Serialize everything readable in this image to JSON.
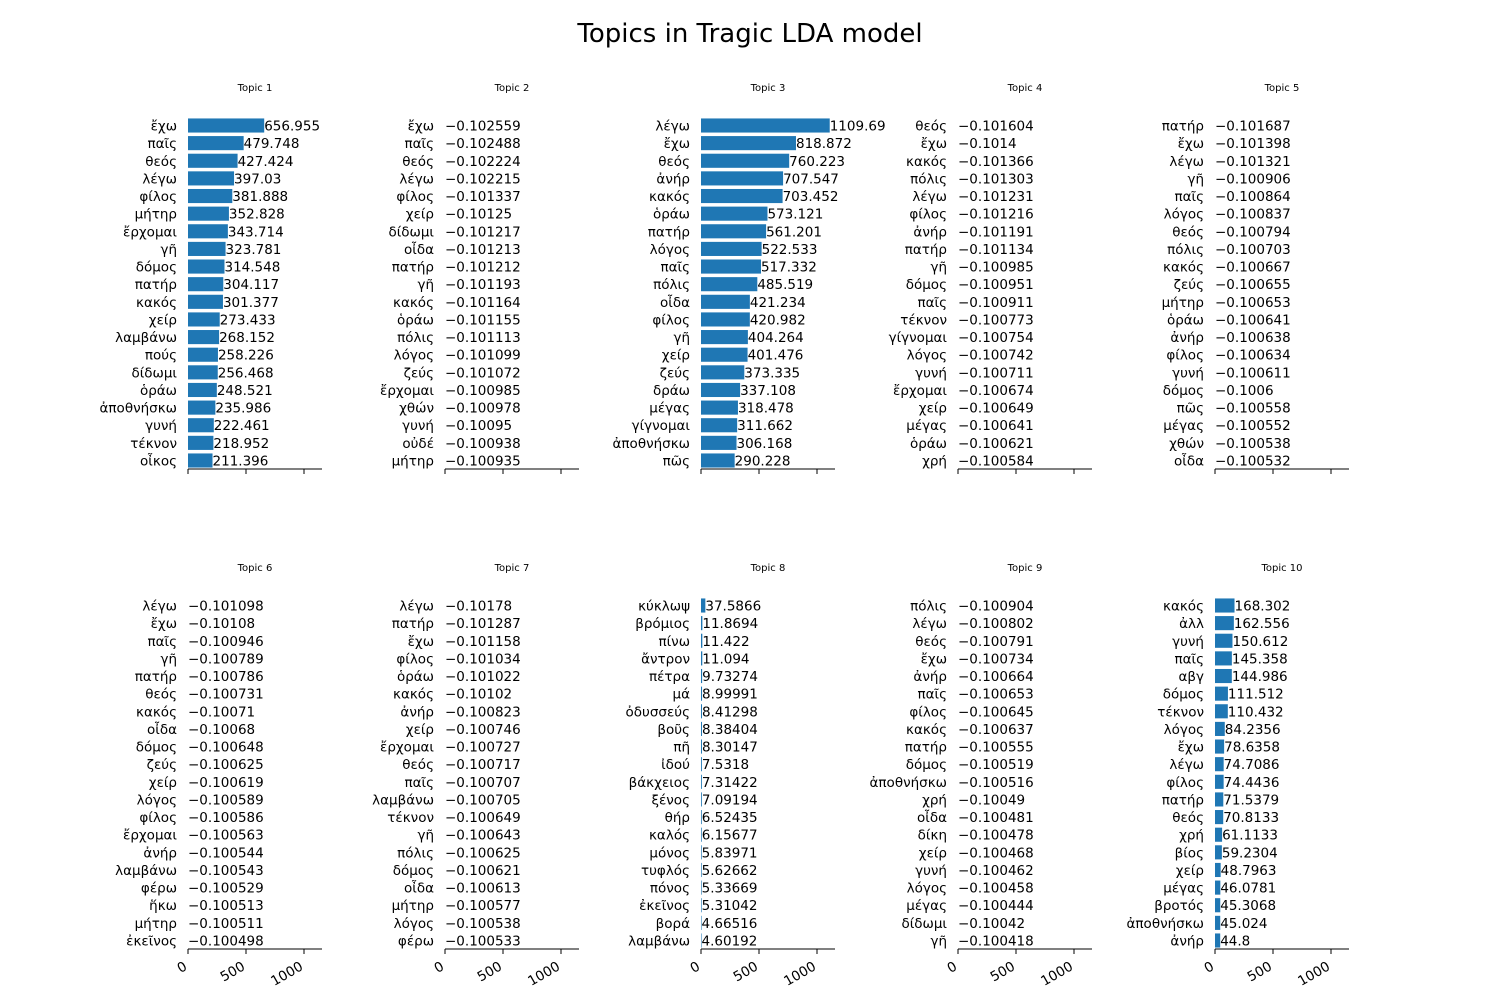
{
  "chart_data": {
    "type": "bar",
    "orientation": "horizontal",
    "title": "Topics in Tragic LDA model",
    "xlim": [
      0,
      1150
    ],
    "xticks": [
      "0",
      "500",
      "1000"
    ],
    "grid": false,
    "panels": [
      {
        "title": "Topic 1",
        "categories": [
          "ἔχω",
          "παῖς",
          "θεός",
          "λέγω",
          "φίλος",
          "μήτηρ",
          "ἔρχομαι",
          "γῆ",
          "δόμος",
          "πατήρ",
          "κακός",
          "χείρ",
          "λαμβάνω",
          "πούς",
          "δίδωμι",
          "ὁράω",
          "ἀποθνήσκω",
          "γυνή",
          "τέκνον",
          "οἶκος"
        ],
        "values": [
          656.955,
          479.748,
          427.424,
          397.03,
          381.888,
          352.828,
          343.714,
          323.781,
          314.548,
          304.117,
          301.377,
          273.433,
          268.152,
          258.226,
          256.468,
          248.521,
          235.986,
          222.461,
          218.952,
          211.396
        ],
        "labels": [
          "656.955",
          "479.748",
          "427.424",
          "397.03",
          "381.888",
          "352.828",
          "343.714",
          "323.781",
          "314.548",
          "304.117",
          "301.377",
          "273.433",
          "268.152",
          "258.226",
          "256.468",
          "248.521",
          "235.986",
          "222.461",
          "218.952",
          "211.396"
        ]
      },
      {
        "title": "Topic 2",
        "categories": [
          "ἔχω",
          "παῖς",
          "θεός",
          "λέγω",
          "φίλος",
          "χείρ",
          "δίδωμι",
          "οἶδα",
          "πατήρ",
          "γῆ",
          "κακός",
          "ὁράω",
          "πόλις",
          "λόγος",
          "ζεύς",
          "ἔρχομαι",
          "χθών",
          "γυνή",
          "οὐδέ",
          "μήτηρ"
        ],
        "values": [
          -0.102559,
          -0.102488,
          -0.102224,
          -0.102215,
          -0.101337,
          -0.10125,
          -0.101217,
          -0.101213,
          -0.101212,
          -0.101193,
          -0.101164,
          -0.101155,
          -0.101113,
          -0.101099,
          -0.101072,
          -0.100985,
          -0.100978,
          -0.10095,
          -0.100938,
          -0.100935
        ],
        "labels": [
          "−0.102559",
          "−0.102488",
          "−0.102224",
          "−0.102215",
          "−0.101337",
          "−0.10125",
          "−0.101217",
          "−0.101213",
          "−0.101212",
          "−0.101193",
          "−0.101164",
          "−0.101155",
          "−0.101113",
          "−0.101099",
          "−0.101072",
          "−0.100985",
          "−0.100978",
          "−0.10095",
          "−0.100938",
          "−0.100935"
        ]
      },
      {
        "title": "Topic 3",
        "categories": [
          "λέγω",
          "ἔχω",
          "θεός",
          "ἀνήρ",
          "κακός",
          "ὁράω",
          "πατήρ",
          "λόγος",
          "παῖς",
          "πόλις",
          "οἶδα",
          "φίλος",
          "γῆ",
          "χείρ",
          "ζεύς",
          "δράω",
          "μέγας",
          "γίγνομαι",
          "ἀποθνήσκω",
          "πῶς"
        ],
        "values": [
          1109.69,
          818.872,
          760.223,
          707.547,
          703.452,
          573.121,
          561.201,
          522.533,
          517.332,
          485.519,
          421.234,
          420.982,
          404.264,
          401.476,
          373.335,
          337.108,
          318.478,
          311.662,
          306.168,
          290.228
        ],
        "labels": [
          "1109.69",
          "818.872",
          "760.223",
          "707.547",
          "703.452",
          "573.121",
          "561.201",
          "522.533",
          "517.332",
          "485.519",
          "421.234",
          "420.982",
          "404.264",
          "401.476",
          "373.335",
          "337.108",
          "318.478",
          "311.662",
          "306.168",
          "290.228"
        ]
      },
      {
        "title": "Topic 4",
        "categories": [
          "θεός",
          "ἔχω",
          "κακός",
          "πόλις",
          "λέγω",
          "φίλος",
          "ἀνήρ",
          "πατήρ",
          "γῆ",
          "δόμος",
          "παῖς",
          "τέκνον",
          "γίγνομαι",
          "λόγος",
          "γυνή",
          "ἔρχομαι",
          "χείρ",
          "μέγας",
          "ὁράω",
          "χρή"
        ],
        "values": [
          -0.101604,
          -0.1014,
          -0.101366,
          -0.101303,
          -0.101231,
          -0.101216,
          -0.101191,
          -0.101134,
          -0.100985,
          -0.100951,
          -0.100911,
          -0.100773,
          -0.100754,
          -0.100742,
          -0.100711,
          -0.100674,
          -0.100649,
          -0.100641,
          -0.100621,
          -0.100584
        ],
        "labels": [
          "−0.101604",
          "−0.1014",
          "−0.101366",
          "−0.101303",
          "−0.101231",
          "−0.101216",
          "−0.101191",
          "−0.101134",
          "−0.100985",
          "−0.100951",
          "−0.100911",
          "−0.100773",
          "−0.100754",
          "−0.100742",
          "−0.100711",
          "−0.100674",
          "−0.100649",
          "−0.100641",
          "−0.100621",
          "−0.100584"
        ]
      },
      {
        "title": "Topic 5",
        "categories": [
          "πατήρ",
          "ἔχω",
          "λέγω",
          "γῆ",
          "παῖς",
          "λόγος",
          "θεός",
          "πόλις",
          "κακός",
          "ζεύς",
          "μήτηρ",
          "ὁράω",
          "ἀνήρ",
          "φίλος",
          "γυνή",
          "δόμος",
          "πῶς",
          "μέγας",
          "χθών",
          "οἶδα"
        ],
        "values": [
          -0.101687,
          -0.101398,
          -0.101321,
          -0.100906,
          -0.100864,
          -0.100837,
          -0.100794,
          -0.100703,
          -0.100667,
          -0.100655,
          -0.100653,
          -0.100641,
          -0.100638,
          -0.100634,
          -0.100611,
          -0.1006,
          -0.100558,
          -0.100552,
          -0.100538,
          -0.100532
        ],
        "labels": [
          "−0.101687",
          "−0.101398",
          "−0.101321",
          "−0.100906",
          "−0.100864",
          "−0.100837",
          "−0.100794",
          "−0.100703",
          "−0.100667",
          "−0.100655",
          "−0.100653",
          "−0.100641",
          "−0.100638",
          "−0.100634",
          "−0.100611",
          "−0.1006",
          "−0.100558",
          "−0.100552",
          "−0.100538",
          "−0.100532"
        ]
      },
      {
        "title": "Topic 6",
        "categories": [
          "λέγω",
          "ἔχω",
          "παῖς",
          "γῆ",
          "πατήρ",
          "θεός",
          "κακός",
          "οἶδα",
          "δόμος",
          "ζεύς",
          "χείρ",
          "λόγος",
          "φίλος",
          "ἔρχομαι",
          "ἀνήρ",
          "λαμβάνω",
          "φέρω",
          "ἥκω",
          "μήτηρ",
          "ἐκεῖνος"
        ],
        "values": [
          -0.101098,
          -0.10108,
          -0.100946,
          -0.100789,
          -0.100786,
          -0.100731,
          -0.10071,
          -0.10068,
          -0.100648,
          -0.100625,
          -0.100619,
          -0.100589,
          -0.100586,
          -0.100563,
          -0.100544,
          -0.100543,
          -0.100529,
          -0.100513,
          -0.100511,
          -0.100498
        ],
        "labels": [
          "−0.101098",
          "−0.10108",
          "−0.100946",
          "−0.100789",
          "−0.100786",
          "−0.100731",
          "−0.10071",
          "−0.10068",
          "−0.100648",
          "−0.100625",
          "−0.100619",
          "−0.100589",
          "−0.100586",
          "−0.100563",
          "−0.100544",
          "−0.100543",
          "−0.100529",
          "−0.100513",
          "−0.100511",
          "−0.100498"
        ]
      },
      {
        "title": "Topic 7",
        "categories": [
          "λέγω",
          "πατήρ",
          "ἔχω",
          "φίλος",
          "ὁράω",
          "κακός",
          "ἀνήρ",
          "χείρ",
          "ἔρχομαι",
          "θεός",
          "παῖς",
          "λαμβάνω",
          "τέκνον",
          "γῆ",
          "πόλις",
          "δόμος",
          "οἶδα",
          "μήτηρ",
          "λόγος",
          "φέρω"
        ],
        "values": [
          -0.10178,
          -0.101287,
          -0.101158,
          -0.101034,
          -0.101022,
          -0.10102,
          -0.100823,
          -0.100746,
          -0.100727,
          -0.100717,
          -0.100707,
          -0.100705,
          -0.100649,
          -0.100643,
          -0.100625,
          -0.100621,
          -0.100613,
          -0.100577,
          -0.100538,
          -0.100533
        ],
        "labels": [
          "−0.10178",
          "−0.101287",
          "−0.101158",
          "−0.101034",
          "−0.101022",
          "−0.10102",
          "−0.100823",
          "−0.100746",
          "−0.100727",
          "−0.100717",
          "−0.100707",
          "−0.100705",
          "−0.100649",
          "−0.100643",
          "−0.100625",
          "−0.100621",
          "−0.100613",
          "−0.100577",
          "−0.100538",
          "−0.100533"
        ]
      },
      {
        "title": "Topic 8",
        "categories": [
          "κύκλωψ",
          "βρόμιος",
          "πίνω",
          "ἄντρον",
          "πέτρα",
          "μά",
          "ὀδυσσεύς",
          "βοῦς",
          "πῆ",
          "ἰδού",
          "βάκχειος",
          "ξένος",
          "θήρ",
          "καλός",
          "μόνος",
          "τυφλός",
          "πόνος",
          "ἐκεῖνος",
          "βορά",
          "λαμβάνω"
        ],
        "values": [
          37.5866,
          11.8694,
          11.422,
          11.094,
          9.73274,
          8.99991,
          8.41298,
          8.38404,
          8.30147,
          7.5318,
          7.31422,
          7.09194,
          6.52435,
          6.15677,
          5.83971,
          5.62662,
          5.33669,
          5.31042,
          4.66516,
          4.60192
        ],
        "labels": [
          "37.5866",
          "11.8694",
          "11.422",
          "11.094",
          "9.73274",
          "8.99991",
          "8.41298",
          "8.38404",
          "8.30147",
          "7.5318",
          "7.31422",
          "7.09194",
          "6.52435",
          "6.15677",
          "5.83971",
          "5.62662",
          "5.33669",
          "5.31042",
          "4.66516",
          "4.60192"
        ]
      },
      {
        "title": "Topic 9",
        "categories": [
          "πόλις",
          "λέγω",
          "θεός",
          "ἔχω",
          "ἀνήρ",
          "παῖς",
          "φίλος",
          "κακός",
          "πατήρ",
          "δόμος",
          "ἀποθνήσκω",
          "χρή",
          "οἶδα",
          "δίκη",
          "χείρ",
          "γυνή",
          "λόγος",
          "μέγας",
          "δίδωμι",
          "γῆ"
        ],
        "values": [
          -0.100904,
          -0.100802,
          -0.100791,
          -0.100734,
          -0.100664,
          -0.100653,
          -0.100645,
          -0.100637,
          -0.100555,
          -0.100519,
          -0.100516,
          -0.10049,
          -0.100481,
          -0.100478,
          -0.100468,
          -0.100462,
          -0.100458,
          -0.100444,
          -0.10042,
          -0.100418
        ],
        "labels": [
          "−0.100904",
          "−0.100802",
          "−0.100791",
          "−0.100734",
          "−0.100664",
          "−0.100653",
          "−0.100645",
          "−0.100637",
          "−0.100555",
          "−0.100519",
          "−0.100516",
          "−0.10049",
          "−0.100481",
          "−0.100478",
          "−0.100468",
          "−0.100462",
          "−0.100458",
          "−0.100444",
          "−0.10042",
          "−0.100418"
        ]
      },
      {
        "title": "Topic 10",
        "categories": [
          "κακός",
          "ἀλλ",
          "γυνή",
          "παῖς",
          "αβγ",
          "δόμος",
          "τέκνον",
          "λόγος",
          "ἔχω",
          "λέγω",
          "φίλος",
          "πατήρ",
          "θεός",
          "χρή",
          "βίος",
          "χείρ",
          "μέγας",
          "βροτός",
          "ἀποθνήσκω",
          "ἀνήρ"
        ],
        "values": [
          168.302,
          162.556,
          150.612,
          145.358,
          144.986,
          111.512,
          110.432,
          84.2356,
          78.6358,
          74.7086,
          74.4436,
          71.5379,
          70.8133,
          61.1133,
          59.2304,
          48.7963,
          46.0781,
          45.3068,
          45.024,
          44.8
        ],
        "labels": [
          "168.302",
          "162.556",
          "150.612",
          "145.358",
          "144.986",
          "111.512",
          "110.432",
          "84.2356",
          "78.6358",
          "74.7086",
          "74.4436",
          "71.5379",
          "70.8133",
          "61.1133",
          "59.2304",
          "48.7963",
          "46.0781",
          "45.3068",
          "45.024",
          "44.8"
        ]
      }
    ]
  }
}
